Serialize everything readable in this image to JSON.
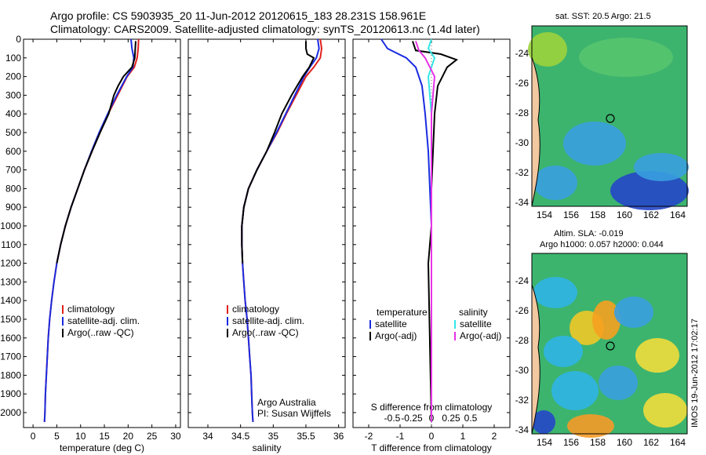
{
  "header": {
    "line1": "Argo profile: CS 5903935_20 11-Jun-2012 20120615_183 28.231S 158.961E",
    "line2": "Climatology: CARS2009. Satellite-adjusted climatology: synTS_20120613.nc (1.4d later)"
  },
  "side_label": "IMOS 19-Jun-2012 17:02:17",
  "colors": {
    "climatology": "#e0201c",
    "satellite": "#1a2be0",
    "argo": "#000000",
    "satellite_s": "#33e6e6",
    "argo_s": "#e633e6"
  },
  "chart_data": [
    {
      "type": "line",
      "title": "",
      "xlabel": "temperature (deg C)",
      "ylabel": "",
      "xlim": [
        -2,
        31
      ],
      "ylim": [
        2080,
        0
      ],
      "xticks": [
        0,
        5,
        10,
        15,
        20,
        25,
        30
      ],
      "yticks": [
        0,
        100,
        200,
        300,
        400,
        500,
        600,
        700,
        800,
        900,
        1000,
        1100,
        1200,
        1300,
        1400,
        1500,
        1600,
        1700,
        1800,
        1900,
        2000
      ],
      "legend": [
        "climatology",
        "satellite-adj. clim.",
        "Argo(..raw -QC)"
      ],
      "series": [
        {
          "name": "climatology",
          "points": [
            [
              22.2,
              0
            ],
            [
              22.1,
              50
            ],
            [
              21.9,
              100
            ],
            [
              21.3,
              150
            ],
            [
              19.8,
              200
            ],
            [
              17.8,
              300
            ],
            [
              15.8,
              400
            ],
            [
              14.0,
              500
            ],
            [
              12.4,
              600
            ],
            [
              10.8,
              700
            ],
            [
              9.4,
              800
            ],
            [
              8.0,
              900
            ],
            [
              6.8,
              1000
            ],
            [
              5.8,
              1100
            ],
            [
              5.0,
              1200
            ],
            [
              4.4,
              1300
            ],
            [
              3.9,
              1400
            ],
            [
              3.5,
              1500
            ],
            [
              3.2,
              1600
            ],
            [
              3.0,
              1700
            ],
            [
              2.8,
              1800
            ],
            [
              2.6,
              1900
            ],
            [
              2.5,
              2000
            ],
            [
              2.4,
              2050
            ]
          ]
        },
        {
          "name": "satellite-adj. clim.",
          "points": [
            [
              20.6,
              0
            ],
            [
              20.8,
              50
            ],
            [
              21.2,
              100
            ],
            [
              21.0,
              150
            ],
            [
              19.7,
              200
            ],
            [
              17.6,
              300
            ],
            [
              15.7,
              400
            ],
            [
              13.9,
              500
            ],
            [
              12.3,
              600
            ],
            [
              10.8,
              700
            ],
            [
              9.4,
              800
            ],
            [
              8.0,
              900
            ],
            [
              6.8,
              1000
            ],
            [
              5.8,
              1100
            ],
            [
              5.0,
              1200
            ],
            [
              4.4,
              1300
            ],
            [
              3.9,
              1400
            ],
            [
              3.5,
              1500
            ],
            [
              3.2,
              1600
            ],
            [
              3.0,
              1700
            ],
            [
              2.8,
              1800
            ],
            [
              2.6,
              1900
            ],
            [
              2.5,
              2000
            ],
            [
              2.4,
              2050
            ]
          ]
        },
        {
          "name": "Argo(..raw -QC)",
          "points": [
            [
              21.6,
              10
            ],
            [
              21.5,
              50
            ],
            [
              21.4,
              100
            ],
            [
              20.8,
              150
            ],
            [
              19.0,
              200
            ],
            [
              17.9,
              250
            ],
            [
              17.0,
              300
            ],
            [
              15.9,
              400
            ],
            [
              14.1,
              500
            ],
            [
              12.4,
              600
            ],
            [
              10.8,
              700
            ],
            [
              9.4,
              800
            ],
            [
              8.0,
              900
            ],
            [
              6.8,
              1000
            ],
            [
              5.8,
              1100
            ],
            [
              5.0,
              1200
            ]
          ]
        }
      ]
    },
    {
      "type": "line",
      "xlabel": "salinity",
      "xlim": [
        33.7,
        36.1
      ],
      "ylim": [
        2080,
        0
      ],
      "xticks": [
        34,
        34.5,
        35,
        35.5,
        36
      ],
      "legend": [
        "climatology",
        "satellite-adj. clim.",
        "Argo(..raw -QC)"
      ],
      "annotation": [
        "Argo Australia",
        "PI: Susan Wijffels"
      ],
      "series": [
        {
          "name": "climatology",
          "points": [
            [
              35.72,
              0
            ],
            [
              35.74,
              50
            ],
            [
              35.72,
              100
            ],
            [
              35.62,
              150
            ],
            [
              35.5,
              200
            ],
            [
              35.35,
              300
            ],
            [
              35.2,
              400
            ],
            [
              35.06,
              500
            ],
            [
              34.9,
              600
            ],
            [
              34.75,
              700
            ],
            [
              34.62,
              800
            ],
            [
              34.55,
              900
            ],
            [
              34.52,
              1000
            ],
            [
              34.52,
              1100
            ],
            [
              34.53,
              1200
            ],
            [
              34.55,
              1300
            ],
            [
              34.57,
              1400
            ],
            [
              34.6,
              1500
            ],
            [
              34.62,
              1600
            ],
            [
              34.64,
              1700
            ],
            [
              34.66,
              1800
            ],
            [
              34.67,
              1900
            ],
            [
              34.68,
              2000
            ],
            [
              34.69,
              2050
            ]
          ]
        },
        {
          "name": "satellite-adj. clim.",
          "points": [
            [
              35.68,
              0
            ],
            [
              35.7,
              50
            ],
            [
              35.66,
              100
            ],
            [
              35.56,
              150
            ],
            [
              35.47,
              200
            ],
            [
              35.33,
              300
            ],
            [
              35.19,
              400
            ],
            [
              35.05,
              500
            ],
            [
              34.9,
              600
            ],
            [
              34.75,
              700
            ],
            [
              34.62,
              800
            ],
            [
              34.55,
              900
            ],
            [
              34.52,
              1000
            ],
            [
              34.52,
              1100
            ],
            [
              34.53,
              1200
            ],
            [
              34.55,
              1300
            ],
            [
              34.57,
              1400
            ],
            [
              34.6,
              1500
            ],
            [
              34.62,
              1600
            ],
            [
              34.64,
              1700
            ],
            [
              34.66,
              1800
            ],
            [
              34.67,
              1900
            ],
            [
              34.68,
              2000
            ],
            [
              34.69,
              2050
            ]
          ]
        },
        {
          "name": "Argo(..raw -QC)",
          "points": [
            [
              35.5,
              10
            ],
            [
              35.5,
              50
            ],
            [
              35.52,
              80
            ],
            [
              35.62,
              100
            ],
            [
              35.55,
              150
            ],
            [
              35.45,
              200
            ],
            [
              35.28,
              300
            ],
            [
              35.13,
              400
            ],
            [
              35.02,
              500
            ],
            [
              34.9,
              600
            ],
            [
              34.75,
              700
            ],
            [
              34.62,
              800
            ],
            [
              34.55,
              900
            ],
            [
              34.52,
              1000
            ],
            [
              34.52,
              1100
            ],
            [
              34.53,
              1200
            ]
          ]
        }
      ]
    },
    {
      "type": "line",
      "xlabel": "T difference from climatology",
      "xlabel2": "S difference from climatology",
      "xlim": [
        -2.5,
        2.5
      ],
      "ylim": [
        2080,
        0
      ],
      "xticks": [
        -2,
        -1,
        0,
        1,
        2
      ],
      "xticklabels": [
        "-2",
        "-1",
        "0",
        "1",
        "2"
      ],
      "x2ticks": [
        -1.25,
        -0.625,
        0,
        0.625,
        1.25
      ],
      "x2ticklabels": [
        "-0.5",
        "-0.25",
        "0",
        "0.25",
        "0.5"
      ],
      "legend_titles": [
        "temperature",
        "salinity"
      ],
      "legend": [
        "satellite",
        "Argo(-adj)",
        "satellite",
        "Argo(-adj)"
      ],
      "series": [
        {
          "name": "T satellite",
          "points": [
            [
              -1.6,
              0
            ],
            [
              -1.4,
              50
            ],
            [
              -0.8,
              100
            ],
            [
              -0.5,
              150
            ],
            [
              -0.3,
              250
            ],
            [
              -0.2,
              400
            ],
            [
              -0.1,
              600
            ],
            [
              0,
              1000
            ],
            [
              0,
              2050
            ]
          ]
        },
        {
          "name": "T Argo(-adj)",
          "points": [
            [
              -0.6,
              10
            ],
            [
              -0.5,
              60
            ],
            [
              0.3,
              80
            ],
            [
              0.8,
              110
            ],
            [
              0.5,
              150
            ],
            [
              0.2,
              250
            ],
            [
              0.1,
              400
            ],
            [
              0.05,
              600
            ],
            [
              0,
              800
            ],
            [
              0.0,
              1000
            ],
            [
              -0.1,
              1200
            ],
            [
              0,
              2050
            ]
          ]
        },
        {
          "name": "S satellite",
          "points": [
            [
              0,
              0
            ],
            [
              -0.1,
              50
            ],
            [
              0.1,
              100
            ],
            [
              -0.1,
              200
            ],
            [
              0,
              400
            ],
            [
              0,
              2050
            ]
          ]
        },
        {
          "name": "S Argo(-adj)",
          "points": [
            [
              -0.5,
              10
            ],
            [
              -0.4,
              60
            ],
            [
              -0.2,
              100
            ],
            [
              0.1,
              200
            ],
            [
              0,
              400
            ],
            [
              0,
              2050
            ]
          ]
        }
      ]
    }
  ],
  "maps": [
    {
      "title": "sat. SST: 20.5 Argo: 21.5",
      "title2": "",
      "yticks": [
        "-24",
        "-26",
        "-28",
        "-30",
        "-32",
        "-34"
      ],
      "xticks": [
        "154",
        "156",
        "158",
        "160",
        "162",
        "164"
      ]
    },
    {
      "title": "Altim. SLA: -0.019",
      "title2": "Argo h1000: 0.057 h2000: 0.044",
      "yticks": [
        "-24",
        "-26",
        "-28",
        "-30",
        "-32",
        "-34"
      ],
      "xticks": [
        "154",
        "156",
        "158",
        "160",
        "162",
        "164"
      ]
    }
  ]
}
